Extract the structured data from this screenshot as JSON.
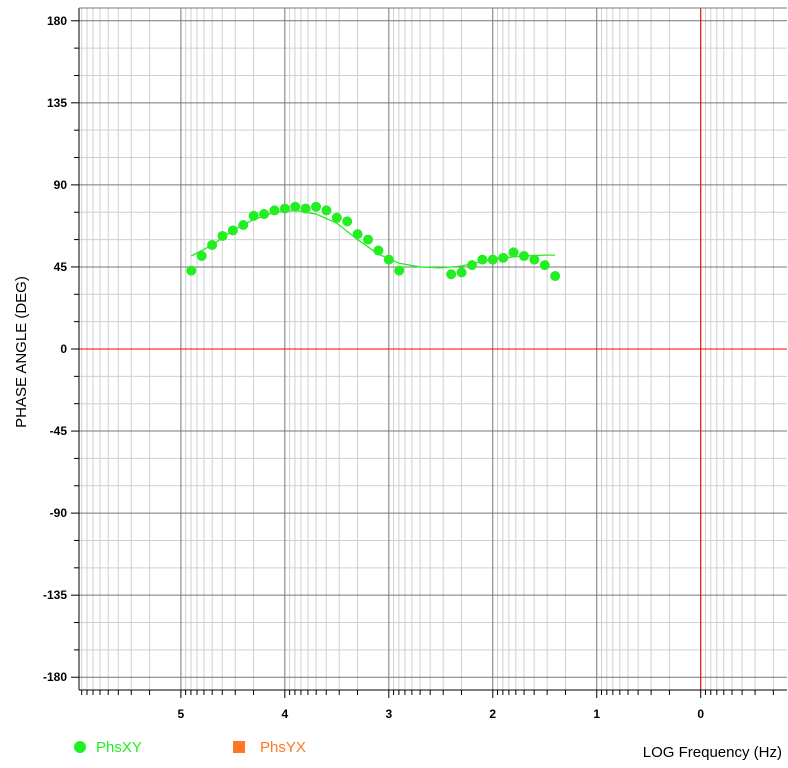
{
  "chart_data": {
    "type": "scatter",
    "ylabel": "PHASE ANGLE (DEG)",
    "xlabel": "LOG Frequency (Hz)",
    "x_axis_reversed": true,
    "x_ticks": [
      5,
      4,
      3,
      2,
      1,
      0
    ],
    "xlim": [
      5.98,
      -0.83
    ],
    "y_ticks": [
      180,
      135,
      90,
      45,
      0,
      -45,
      -90,
      -135,
      -180
    ],
    "ylim": [
      -187,
      187
    ],
    "grid": true,
    "reference_lines": {
      "x": 0,
      "y": 0,
      "color": "#ff0000"
    },
    "legend_position": "bottom",
    "series": [
      {
        "name": "PhsXY",
        "color": "#22ee22",
        "marker": "circle",
        "x": [
          4.9,
          4.8,
          4.7,
          4.6,
          4.5,
          4.4,
          4.3,
          4.2,
          4.1,
          4.0,
          3.9,
          3.8,
          3.7,
          3.6,
          3.5,
          3.4,
          3.3,
          3.2,
          3.1,
          3.0,
          2.9,
          2.4,
          2.3,
          2.2,
          2.1,
          2.0,
          1.9,
          1.8,
          1.7,
          1.6,
          1.5,
          1.4
        ],
        "values": [
          43,
          51,
          57,
          62,
          65,
          68,
          73,
          74,
          76,
          77,
          78,
          77,
          78,
          76,
          72,
          70,
          63,
          60,
          54,
          49,
          43,
          41,
          42,
          46,
          49,
          49,
          50,
          53,
          51,
          49,
          46,
          40
        ],
        "fit_curve": {
          "x": [
            4.9,
            4.7,
            4.5,
            4.3,
            4.1,
            3.9,
            3.7,
            3.5,
            3.3,
            3.1,
            2.9,
            2.7,
            2.5,
            2.3,
            2.1,
            1.9,
            1.7,
            1.5,
            1.4
          ],
          "values": [
            51,
            57,
            65,
            71,
            75,
            76,
            74,
            69,
            60,
            52,
            47,
            45,
            44.5,
            45.5,
            48,
            50,
            51,
            51.5,
            51.5
          ]
        }
      },
      {
        "name": "PhsYX",
        "color": "#ff7722",
        "marker": "square",
        "x": [],
        "values": []
      }
    ]
  }
}
